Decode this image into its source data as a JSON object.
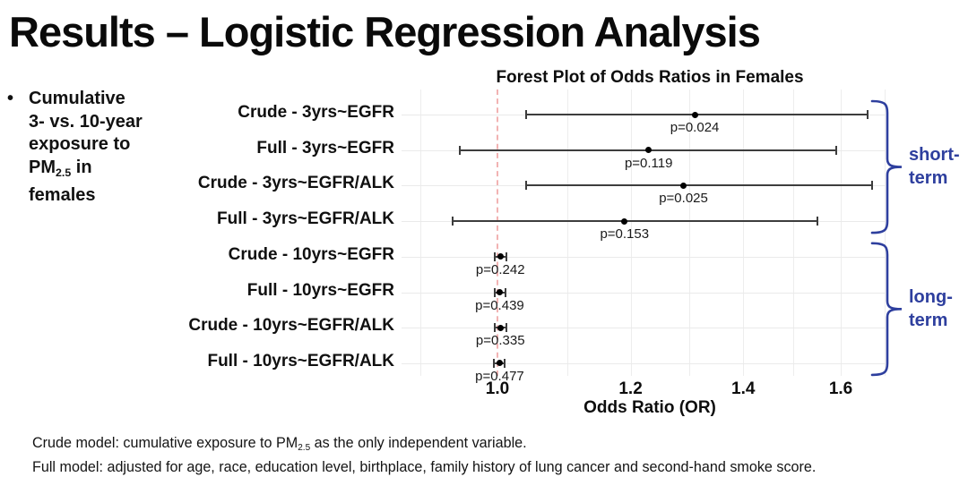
{
  "title": "Results – Logistic Regression Analysis",
  "bullet": {
    "marker": "•",
    "line1": "Cumulative",
    "line2": "3- vs. 10-year",
    "line3": "exposure to",
    "pm_prefix": "PM",
    "pm_sub": "2.5",
    "pm_suffix": " in",
    "line4": "females"
  },
  "colors": {
    "accent_blue": "#2e3f9e",
    "reference_line_pink": "#f2b3b3",
    "error_bar": "#3d3d3d",
    "gridline": "#ededed",
    "text_black": "#0d0d0d"
  },
  "chart_data": {
    "type": "forest",
    "title": "Forest Plot of Odds Ratios in Females",
    "xlabel": "Odds Ratio (OR)",
    "x_scale": "log",
    "xlim": [
      0.88,
      1.73
    ],
    "x_ticks": [
      "1.0",
      "1.2",
      "1.4",
      "1.6"
    ],
    "gridlines": [
      0.9,
      1.1,
      1.2,
      1.3,
      1.4,
      1.5,
      1.6,
      1.7
    ],
    "reference_line": 1.0,
    "grid": true,
    "p_prefix": "p=",
    "rows": [
      {
        "label": "Crude - 3yrs~EGFR",
        "or": 1.31,
        "ci_low": 1.04,
        "ci_high": 1.66,
        "p": "0.024"
      },
      {
        "label": "Full - 3yrs~EGFR",
        "or": 1.23,
        "ci_low": 0.95,
        "ci_high": 1.59,
        "p": "0.119"
      },
      {
        "label": "Crude - 3yrs~EGFR/ALK",
        "or": 1.29,
        "ci_low": 1.04,
        "ci_high": 1.67,
        "p": "0.025"
      },
      {
        "label": "Full - 3yrs~EGFR/ALK",
        "or": 1.19,
        "ci_low": 0.94,
        "ci_high": 1.55,
        "p": "0.153"
      },
      {
        "label": "Crude - 10yrs~EGFR",
        "or": 1.004,
        "ci_low": 0.996,
        "ci_high": 1.012,
        "p": "0.242"
      },
      {
        "label": "Full - 10yrs~EGFR",
        "or": 1.003,
        "ci_low": 0.996,
        "ci_high": 1.011,
        "p": "0.439"
      },
      {
        "label": "Crude - 10yrs~EGFR/ALK",
        "or": 1.004,
        "ci_low": 0.996,
        "ci_high": 1.012,
        "p": "0.335"
      },
      {
        "label": "Full - 10yrs~EGFR/ALK",
        "or": 1.003,
        "ci_low": 0.995,
        "ci_high": 1.01,
        "p": "0.477"
      }
    ],
    "groups": [
      {
        "label_lines": [
          "short-",
          "term"
        ],
        "row_start": 0,
        "row_end": 3
      },
      {
        "label_lines": [
          "long-",
          "term"
        ],
        "row_start": 4,
        "row_end": 7
      }
    ]
  },
  "footnotes": {
    "crude_prefix": "Crude model: cumulative exposure to PM",
    "crude_sub": "2.5",
    "crude_suffix": " as the only independent variable.",
    "full": "Full model: adjusted for age, race, education level, birthplace, family history of lung cancer and second-hand smoke score."
  }
}
